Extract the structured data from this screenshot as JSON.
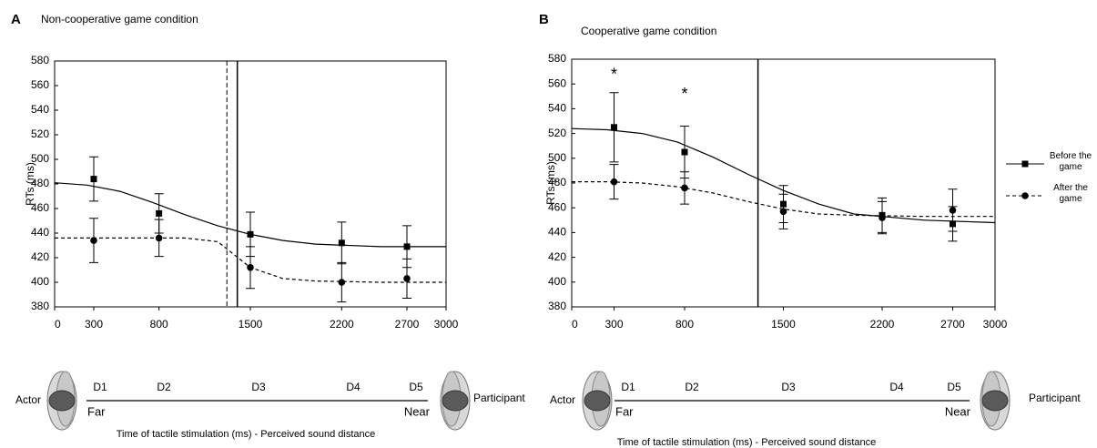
{
  "chart_data": [
    {
      "type": "scatter",
      "panel": "A",
      "title": "Non-cooperative game condition",
      "ylabel": "RTs (ms)",
      "xlabel": "Time of tactile stimulation (ms) - Perceived sound distance",
      "x": [
        300,
        800,
        1500,
        2200,
        2700
      ],
      "xlim": [
        0,
        3000
      ],
      "xticks": [
        0,
        300,
        800,
        1500,
        2200,
        2700,
        3000
      ],
      "ylim": [
        380,
        580
      ],
      "yticks": [
        380,
        400,
        420,
        440,
        460,
        480,
        500,
        520,
        540,
        560,
        580
      ],
      "series": [
        {
          "marker": "square",
          "line": "solid",
          "color": "#000000",
          "values": [
            484,
            456,
            439,
            432,
            429
          ],
          "errors": [
            18,
            16,
            18,
            17,
            17
          ],
          "fit_x": [
            0,
            250,
            500,
            750,
            1000,
            1250,
            1500,
            1750,
            2000,
            2500,
            3000
          ],
          "fit_values": [
            481,
            479,
            474,
            465,
            455,
            446,
            439,
            434,
            431,
            429,
            429
          ]
        },
        {
          "marker": "circle",
          "line": "dashed",
          "color": "#000000",
          "values": [
            434,
            436,
            412,
            400,
            403
          ],
          "errors": [
            18,
            15,
            17,
            16,
            16
          ],
          "fit_x": [
            0,
            250,
            500,
            750,
            1000,
            1250,
            1500,
            1750,
            2000,
            2500,
            3000
          ],
          "fit_values": [
            436,
            436,
            436,
            436,
            436,
            433,
            412,
            403,
            401,
            400,
            400
          ]
        }
      ],
      "vlines": [
        {
          "x": 1400,
          "line": "solid"
        },
        {
          "x": 1320,
          "line": "dashed"
        }
      ],
      "distance": {
        "left": "Actor",
        "right": "Participant",
        "points": [
          "D1",
          "D2",
          "D3",
          "D4",
          "D5"
        ],
        "far": "Far",
        "near": "Near"
      }
    },
    {
      "type": "scatter",
      "panel": "B",
      "title": "Cooperative game condition",
      "ylabel": "RTs (ms)",
      "xlabel": "Time of tactile stimulation (ms) - Perceived sound distance",
      "x": [
        300,
        800,
        1500,
        2200,
        2700
      ],
      "xlim": [
        0,
        3000
      ],
      "xticks": [
        0,
        300,
        800,
        1500,
        2200,
        2700,
        3000
      ],
      "ylim": [
        380,
        580
      ],
      "yticks": [
        380,
        400,
        420,
        440,
        460,
        480,
        500,
        520,
        540,
        560,
        580
      ],
      "legend": "right",
      "series": [
        {
          "name": "Before the game",
          "marker": "square",
          "line": "solid",
          "color": "#000000",
          "values": [
            525,
            505,
            463,
            454,
            447
          ],
          "errors": [
            28,
            21,
            15,
            14,
            14
          ],
          "fit_x": [
            0,
            250,
            500,
            750,
            1000,
            1250,
            1500,
            1750,
            2000,
            2500,
            3000
          ],
          "fit_values": [
            524,
            523,
            520,
            513,
            501,
            487,
            474,
            463,
            455,
            450,
            448
          ]
        },
        {
          "name": "After the game",
          "marker": "circle",
          "line": "dashed",
          "color": "#000000",
          "values": [
            481,
            476,
            457,
            452,
            458
          ],
          "errors": [
            14,
            13,
            14,
            13,
            17
          ],
          "fit_x": [
            0,
            250,
            500,
            750,
            1000,
            1250,
            1500,
            1750,
            2000,
            2500,
            3000
          ],
          "fit_values": [
            481,
            481,
            480,
            477,
            472,
            465,
            459,
            455,
            454,
            453,
            453
          ]
        }
      ],
      "vlines": [
        {
          "x": 1320,
          "line": "solid"
        }
      ],
      "annotations": [
        {
          "x": 300,
          "y": 567,
          "text": "*"
        },
        {
          "x": 800,
          "y": 551,
          "text": "*"
        }
      ],
      "distance": {
        "left": "Actor",
        "right": "Participant",
        "points": [
          "D1",
          "D2",
          "D3",
          "D4",
          "D5"
        ],
        "far": "Far",
        "near": "Near"
      }
    }
  ]
}
